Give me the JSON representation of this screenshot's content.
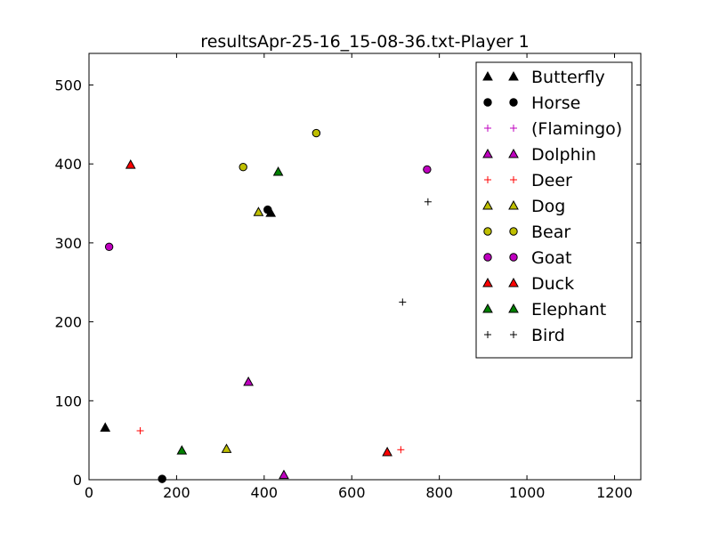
{
  "chart_data": {
    "type": "scatter",
    "title": "resultsApr-25-16_15-08-36.txt-Player 1",
    "xlabel": "",
    "ylabel": "",
    "xlim": [
      0,
      1260
    ],
    "ylim": [
      0,
      540
    ],
    "xticks": [
      0,
      200,
      400,
      600,
      800,
      1000,
      1200
    ],
    "yticks": [
      0,
      100,
      200,
      300,
      400,
      500
    ],
    "grid": false,
    "legend_position": "top-right",
    "series": [
      {
        "name": "Butterfly",
        "marker": "triangle",
        "color": "#000000",
        "points": [
          [
            37,
            66
          ],
          [
            415,
            338
          ]
        ]
      },
      {
        "name": "Horse",
        "marker": "circle",
        "color": "#000000",
        "points": [
          [
            167,
            1
          ],
          [
            408,
            342
          ]
        ]
      },
      {
        "name": "(Flamingo)",
        "marker": "plus",
        "color": "#bf00bf",
        "points": []
      },
      {
        "name": "Dolphin",
        "marker": "triangle",
        "color": "#bf00bf",
        "points": [
          [
            364,
            124
          ],
          [
            445,
            6
          ]
        ]
      },
      {
        "name": "Deer",
        "marker": "plus",
        "color": "#ff0000",
        "points": [
          [
            117,
            62
          ],
          [
            712,
            38
          ]
        ]
      },
      {
        "name": "Dog",
        "marker": "triangle",
        "color": "#bfbf00",
        "points": [
          [
            314,
            39
          ],
          [
            387,
            339
          ]
        ]
      },
      {
        "name": "Bear",
        "marker": "circle",
        "color": "#bfbf00",
        "points": [
          [
            352,
            396
          ],
          [
            519,
            439
          ]
        ]
      },
      {
        "name": "Goat",
        "marker": "circle",
        "color": "#bf00bf",
        "points": [
          [
            46,
            295
          ],
          [
            772,
            393
          ]
        ]
      },
      {
        "name": "Duck",
        "marker": "triangle",
        "color": "#ff0000",
        "points": [
          [
            95,
            399
          ],
          [
            681,
            35
          ]
        ]
      },
      {
        "name": "Elephant",
        "marker": "triangle",
        "color": "#008000",
        "points": [
          [
            212,
            37
          ],
          [
            432,
            390
          ]
        ]
      },
      {
        "name": "Bird",
        "marker": "plus",
        "color": "#000000",
        "points": [
          [
            716,
            225
          ],
          [
            774,
            352
          ]
        ]
      }
    ]
  }
}
